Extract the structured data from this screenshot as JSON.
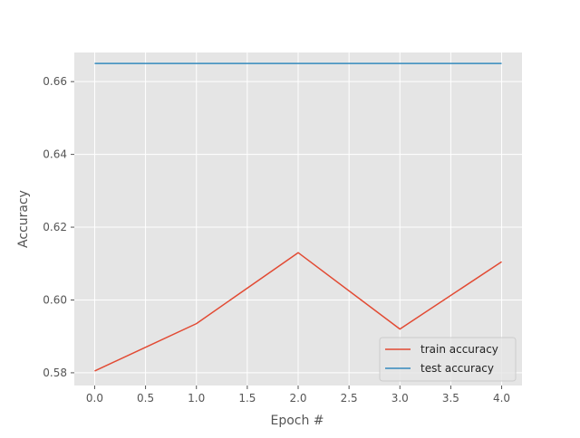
{
  "chart_data": {
    "type": "line",
    "title": "",
    "xlabel": "Epoch #",
    "ylabel": "Accuracy",
    "x": [
      0,
      1,
      2,
      3,
      4
    ],
    "xlim": [
      -0.2,
      4.2
    ],
    "ylim": [
      0.5765,
      0.668
    ],
    "xticks": [
      0.0,
      0.5,
      1.0,
      1.5,
      2.0,
      2.5,
      3.0,
      3.5,
      4.0
    ],
    "xtick_labels": [
      "0.0",
      "0.5",
      "1.0",
      "1.5",
      "2.0",
      "2.5",
      "3.0",
      "3.5",
      "4.0"
    ],
    "yticks": [
      0.58,
      0.6,
      0.62,
      0.64,
      0.66
    ],
    "ytick_labels": [
      "0.58",
      "0.60",
      "0.62",
      "0.64",
      "0.66"
    ],
    "grid": true,
    "style": "ggplot",
    "legend_position": "lower-right",
    "series": [
      {
        "name": "train accuracy",
        "color": "#E24A33",
        "values": [
          0.5805,
          0.5935,
          0.613,
          0.592,
          0.6105
        ]
      },
      {
        "name": "test accuracy",
        "color": "#348ABD",
        "values": [
          0.665,
          0.665,
          0.665,
          0.665,
          0.665
        ]
      }
    ]
  }
}
